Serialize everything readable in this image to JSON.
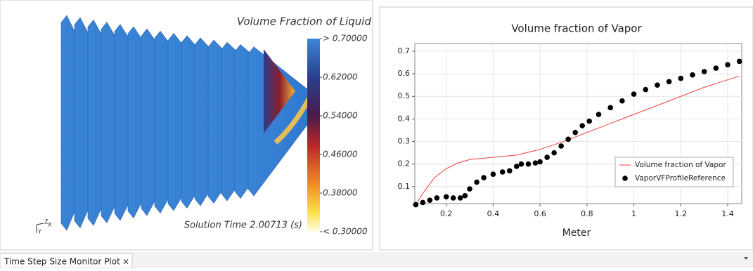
{
  "scene": {
    "title": "Volume Fraction of Liquid",
    "solution_time": "Solution Time 2.00713 (s)",
    "colorbar_range": [
      0.3,
      0.7
    ],
    "colorbar_ticks": [
      {
        "value": 0.7,
        "label": "> 0.70000"
      },
      {
        "value": 0.62,
        "label": "0.62000"
      },
      {
        "value": 0.54,
        "label": "0.54000"
      },
      {
        "value": 0.46,
        "label": "0.46000"
      },
      {
        "value": 0.38,
        "label": "0.38000"
      },
      {
        "value": 0.3,
        "label": "< 0.30000"
      }
    ],
    "triad": [
      "Z",
      "X",
      "Y"
    ]
  },
  "chart_data": {
    "type": "line",
    "title": "Volume fraction of Vapor",
    "x_label": "Meter",
    "xlim": [
      0.066,
      1.46
    ],
    "ylim": [
      0.025,
      0.734
    ],
    "xticks": [
      0.2,
      0.4,
      0.6,
      0.8,
      1,
      1.2,
      1.4
    ],
    "yticks": [
      0.1,
      0.2,
      0.3,
      0.4,
      0.5,
      0.6,
      0.7
    ],
    "grid": true,
    "legend": "lower right",
    "series": [
      {
        "name": "Volume fraction of Vapor",
        "type": "line",
        "color": "#e8413c",
        "x": [
          0.07,
          0.1,
          0.15,
          0.2,
          0.25,
          0.3,
          0.4,
          0.5,
          0.6,
          0.7,
          0.8,
          0.9,
          1.0,
          1.1,
          1.2,
          1.3,
          1.45
        ],
        "values": [
          0.02,
          0.07,
          0.14,
          0.18,
          0.205,
          0.22,
          0.23,
          0.24,
          0.265,
          0.3,
          0.34,
          0.38,
          0.42,
          0.46,
          0.5,
          0.54,
          0.59
        ]
      },
      {
        "name": "VaporVFProfileReference",
        "type": "scatter",
        "color": "#000000",
        "x": [
          0.07,
          0.1,
          0.13,
          0.16,
          0.2,
          0.23,
          0.26,
          0.28,
          0.3,
          0.33,
          0.36,
          0.4,
          0.44,
          0.47,
          0.5,
          0.52,
          0.55,
          0.58,
          0.6,
          0.63,
          0.66,
          0.69,
          0.72,
          0.75,
          0.78,
          0.81,
          0.85,
          0.9,
          0.95,
          1.0,
          1.05,
          1.1,
          1.15,
          1.2,
          1.25,
          1.3,
          1.35,
          1.4,
          1.45
        ],
        "values": [
          0.02,
          0.03,
          0.04,
          0.05,
          0.055,
          0.05,
          0.05,
          0.06,
          0.09,
          0.12,
          0.14,
          0.155,
          0.165,
          0.17,
          0.19,
          0.2,
          0.2,
          0.205,
          0.21,
          0.23,
          0.25,
          0.28,
          0.31,
          0.34,
          0.37,
          0.39,
          0.42,
          0.45,
          0.48,
          0.51,
          0.53,
          0.55,
          0.565,
          0.58,
          0.595,
          0.61,
          0.625,
          0.64,
          0.655
        ]
      }
    ]
  },
  "tab": {
    "label": "Time Step Size Monitor Plot",
    "close": "×"
  }
}
